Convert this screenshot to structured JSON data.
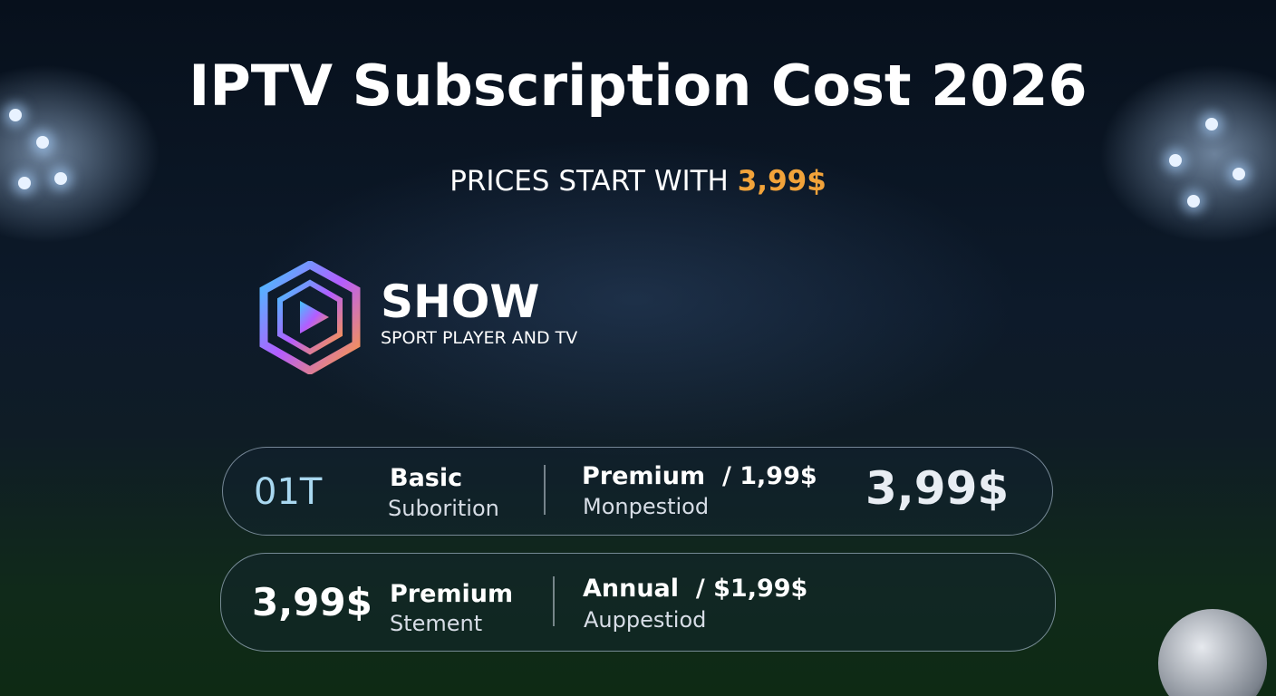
{
  "header": {
    "title": "IPTV Subscription Cost 2026",
    "subtitle": "PRICES START WITH",
    "highlight": "3,99$"
  },
  "brand": {
    "name": "SHOW",
    "tagline": "SPORT PLAYER AND TV"
  },
  "plans": [
    {
      "lead": "01T",
      "name": "Basic",
      "name_sub": "Suborition",
      "tier": "Premium",
      "tier_price": "/ 1,99$",
      "tier_sub": "Monpestiod",
      "price": "3,99$"
    },
    {
      "lead": "3,99$",
      "name": "Premium",
      "name_sub": "Stement",
      "tier": "Annual",
      "tier_price": "/ $1,99$",
      "tier_sub": "Auppestiod"
    }
  ]
}
